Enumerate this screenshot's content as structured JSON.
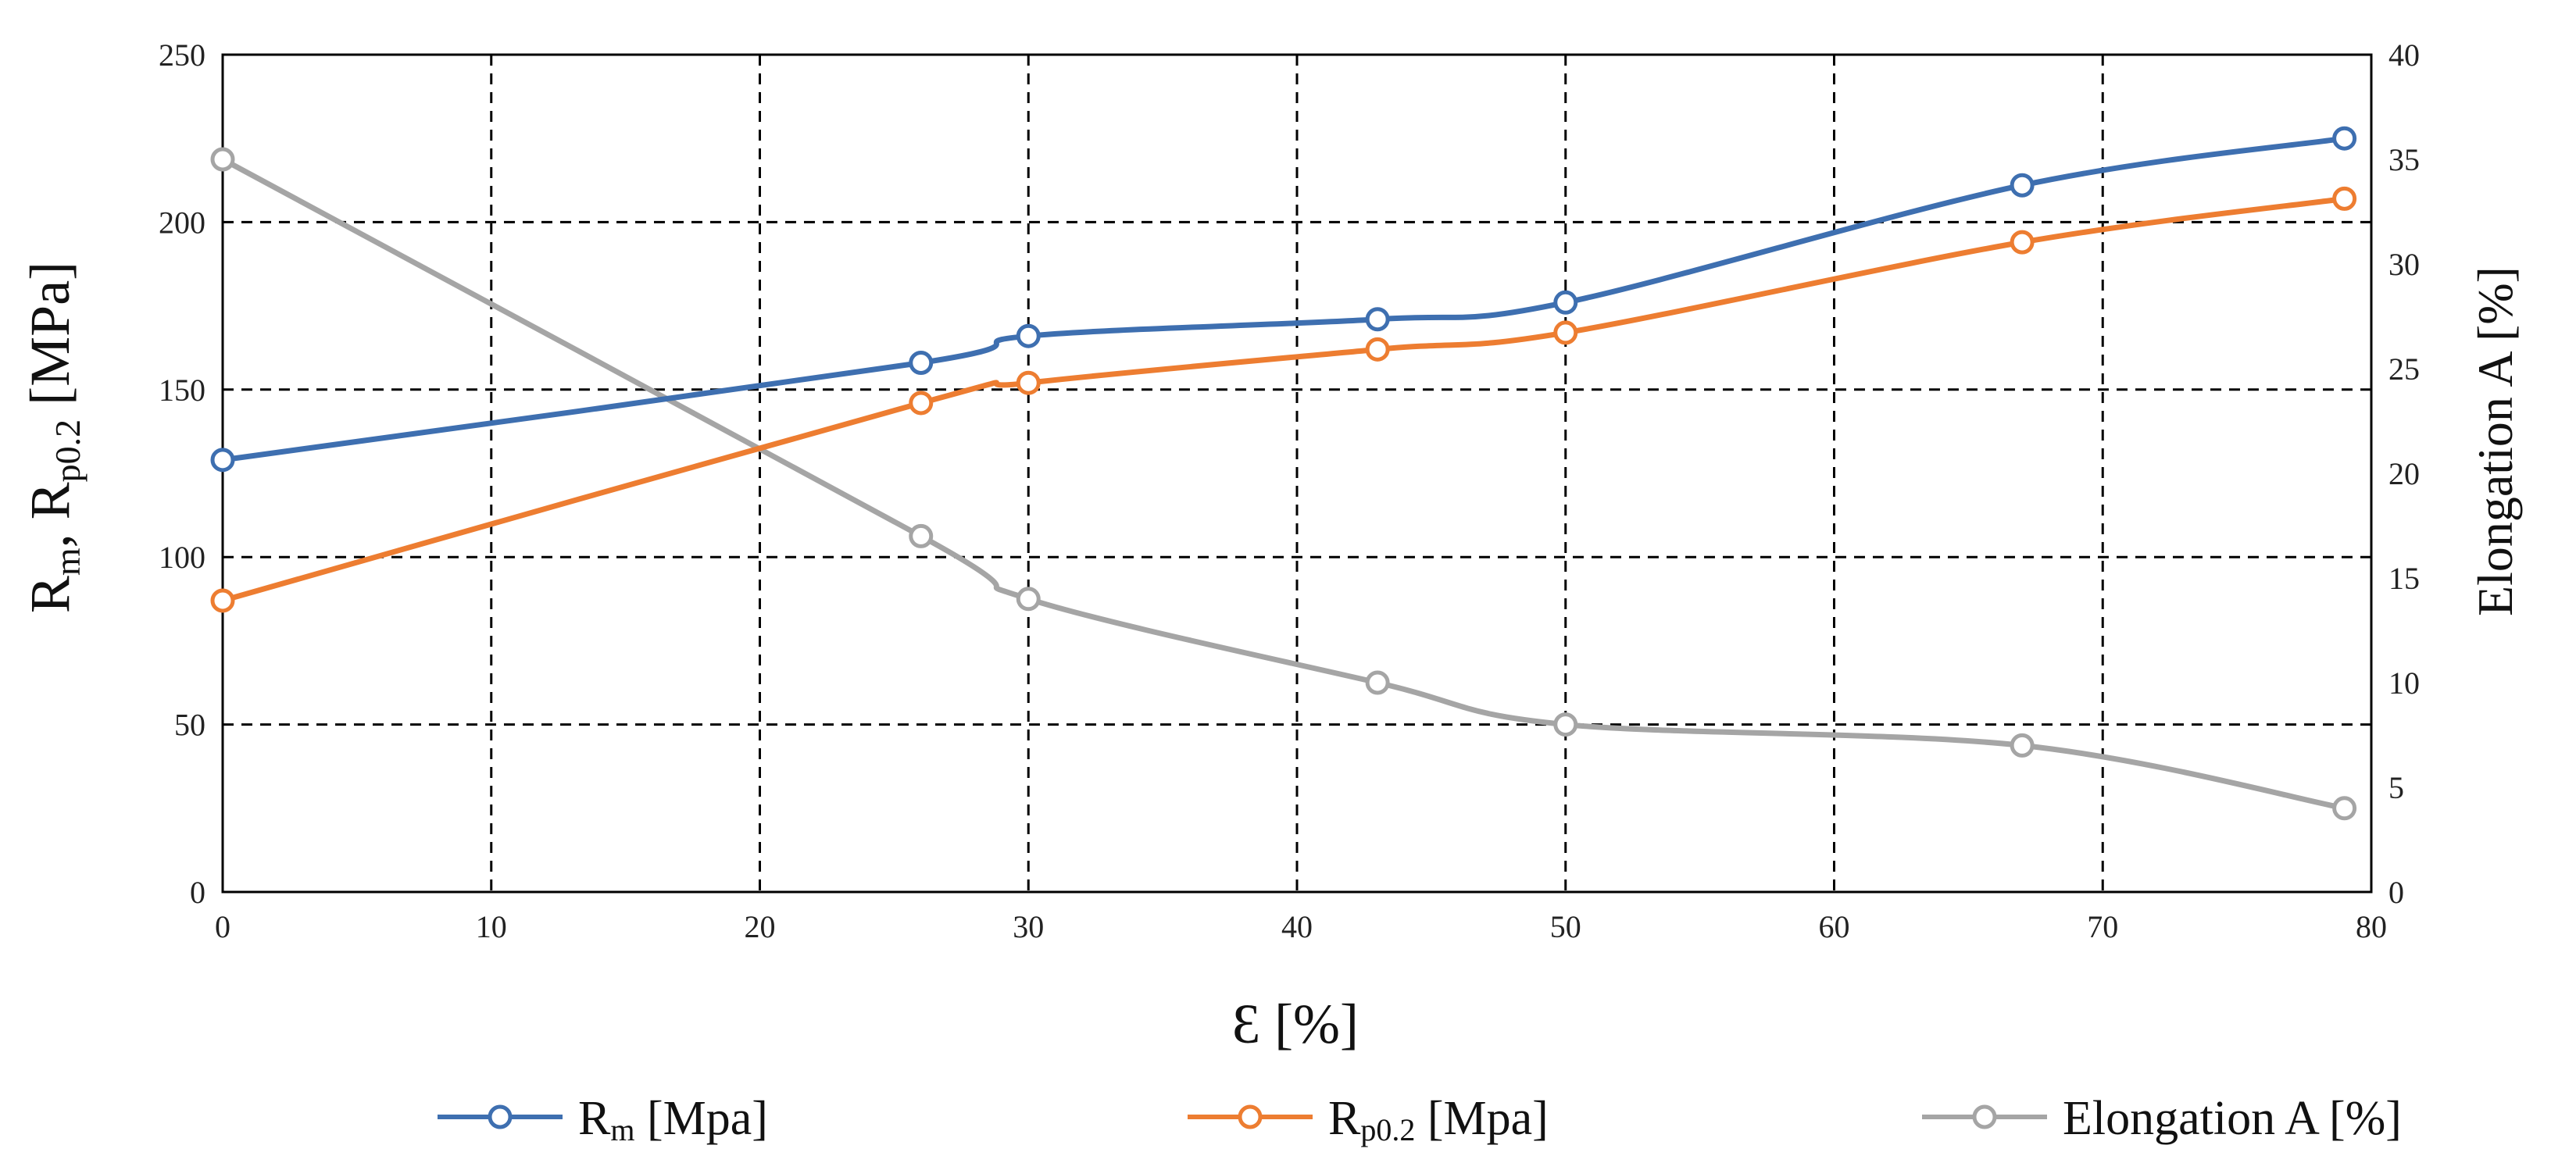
{
  "chart_data": {
    "type": "line",
    "x": {
      "label_symbol": "Ɛ",
      "label_unit": "[%]",
      "ticks": [
        "0",
        "10",
        "20",
        "30",
        "40",
        "50",
        "60",
        "70",
        "80"
      ],
      "range": [
        0,
        80
      ]
    },
    "y_left": {
      "label_main": "R",
      "label_sub1": "m",
      "label_mid": ", R",
      "label_sub2": "p0.2",
      "label_unit": " [MPa]",
      "ticks": [
        "0",
        "50",
        "100",
        "150",
        "200",
        "250"
      ],
      "range": [
        0,
        250
      ]
    },
    "y_right": {
      "label": "Elongation A  [%]",
      "ticks": [
        "0",
        "5",
        "10",
        "15",
        "20",
        "25",
        "30",
        "35",
        "40"
      ],
      "range": [
        0,
        40
      ]
    },
    "grid": "dashed",
    "legend_position": "bottom",
    "series": [
      {
        "legend_main": "R",
        "legend_sub": "m",
        "legend_unit": " [Mpa]",
        "axis": "left",
        "color": "#3E6FB0",
        "x": [
          0,
          26,
          30,
          43,
          50,
          67,
          79
        ],
        "y": [
          129,
          158,
          166,
          171,
          176,
          211,
          225
        ]
      },
      {
        "legend_main": "R",
        "legend_sub": "p0.2",
        "legend_unit": " [Mpa]",
        "axis": "left",
        "color": "#ED7D31",
        "x": [
          0,
          26,
          30,
          43,
          50,
          67,
          79
        ],
        "y": [
          87,
          146,
          152,
          162,
          167,
          194,
          207
        ]
      },
      {
        "legend_main": "Elongation A  [%]",
        "legend_sub": "",
        "legend_unit": "",
        "axis": "right",
        "color": "#A5A5A5",
        "x": [
          0,
          26,
          30,
          43,
          50,
          67,
          79
        ],
        "y": [
          35,
          17,
          14,
          10,
          8,
          7,
          4
        ]
      }
    ]
  }
}
